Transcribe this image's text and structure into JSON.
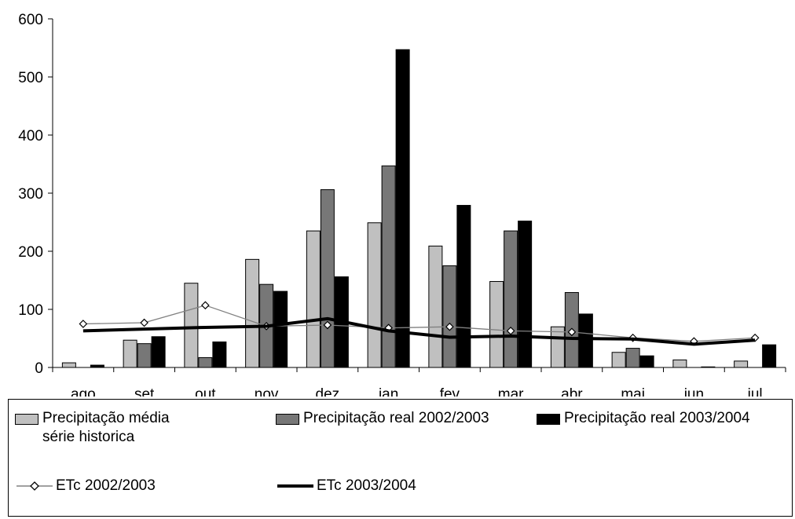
{
  "chart_data": {
    "type": "bar",
    "title": "",
    "xlabel": "",
    "ylabel": "",
    "ylim": [
      0,
      600
    ],
    "yticks": [
      0,
      100,
      200,
      300,
      400,
      500,
      600
    ],
    "grid": false,
    "categories": [
      "ago",
      "set",
      "out",
      "nov",
      "dez",
      "jan",
      "fev",
      "mar",
      "abr",
      "mai",
      "jun",
      "jul"
    ],
    "bar_series": [
      {
        "name": "Precipitação média série historica",
        "color": "#c0c0c0",
        "values": [
          8,
          47,
          145,
          186,
          235,
          249,
          209,
          148,
          70,
          26,
          13,
          11
        ]
      },
      {
        "name": "Precipitação real 2002/2003",
        "color": "#777777",
        "values": [
          0,
          41,
          17,
          143,
          306,
          347,
          175,
          235,
          129,
          33,
          0,
          0
        ]
      },
      {
        "name": "Precipitação real 2003/2004",
        "color": "#000000",
        "values": [
          4,
          53,
          44,
          131,
          156,
          547,
          279,
          252,
          92,
          20,
          1,
          39
        ]
      }
    ],
    "line_series": [
      {
        "name": "ETc 2002/2003",
        "color": "#808080",
        "marker": "diamond",
        "values": [
          75,
          77,
          107,
          71,
          73,
          68,
          70,
          63,
          61,
          51,
          45,
          51
        ]
      },
      {
        "name": "ETc 2003/2004",
        "color": "#000000",
        "marker": "none",
        "values": [
          63,
          66,
          69,
          71,
          84,
          63,
          52,
          54,
          50,
          49,
          40,
          47
        ]
      }
    ],
    "legend": {
      "position": "bottom",
      "items": [
        {
          "label": "Precipitação média\nsérie historica",
          "kind": "bar",
          "color": "#c0c0c0"
        },
        {
          "label": "Precipitação real 2002/2003",
          "kind": "bar",
          "color": "#777777"
        },
        {
          "label": "Precipitação real 2003/2004",
          "kind": "bar",
          "color": "#000000"
        },
        {
          "label": "ETc 2002/2003",
          "kind": "line-diamond",
          "color": "#808080"
        },
        {
          "label": "ETc 2003/2004",
          "kind": "line-thick",
          "color": "#000000"
        }
      ]
    }
  }
}
